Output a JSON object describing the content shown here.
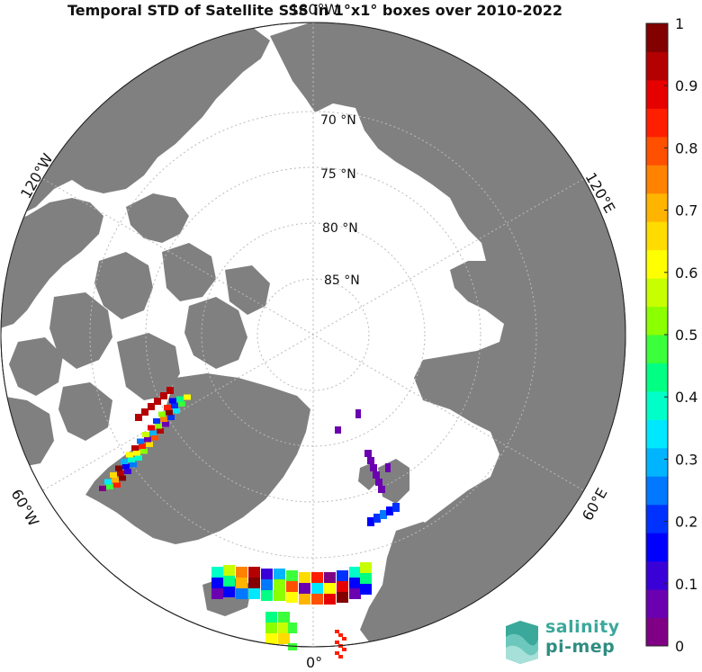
{
  "title": "Temporal STD of Satellite SSS in 1°x1° boxes over 2010-2022",
  "map": {
    "projection": "north-polar-stereographic",
    "lat_labels": [
      "70 °N",
      "75 °N",
      "80 °N",
      "85 °N"
    ],
    "lon_labels": {
      "top": "180°W",
      "left": "120°W",
      "right": "120°E",
      "lower_left": "60°W",
      "lower_right": "60°E",
      "bottom": "0°"
    },
    "land_color": "#808080",
    "ocean_color": "#ffffff"
  },
  "colorbar": {
    "min": 0,
    "max": 1,
    "tick_labels": [
      "0",
      "0.1",
      "0.2",
      "0.3",
      "0.4",
      "0.5",
      "0.6",
      "0.7",
      "0.8",
      "0.9",
      "1"
    ],
    "colors": [
      "#7f0084",
      "#6a00b0",
      "#3a00d8",
      "#0000ff",
      "#0032ff",
      "#0078ff",
      "#00b4ff",
      "#00e8ff",
      "#00ffc8",
      "#00ff82",
      "#3aff3a",
      "#8cff00",
      "#c8ff00",
      "#ffff00",
      "#ffdc00",
      "#ffb400",
      "#ff8200",
      "#ff5000",
      "#ff1e00",
      "#e60000",
      "#b40000",
      "#820000"
    ]
  },
  "logo": {
    "line1": "salinity",
    "line2": "pi-mep"
  }
}
